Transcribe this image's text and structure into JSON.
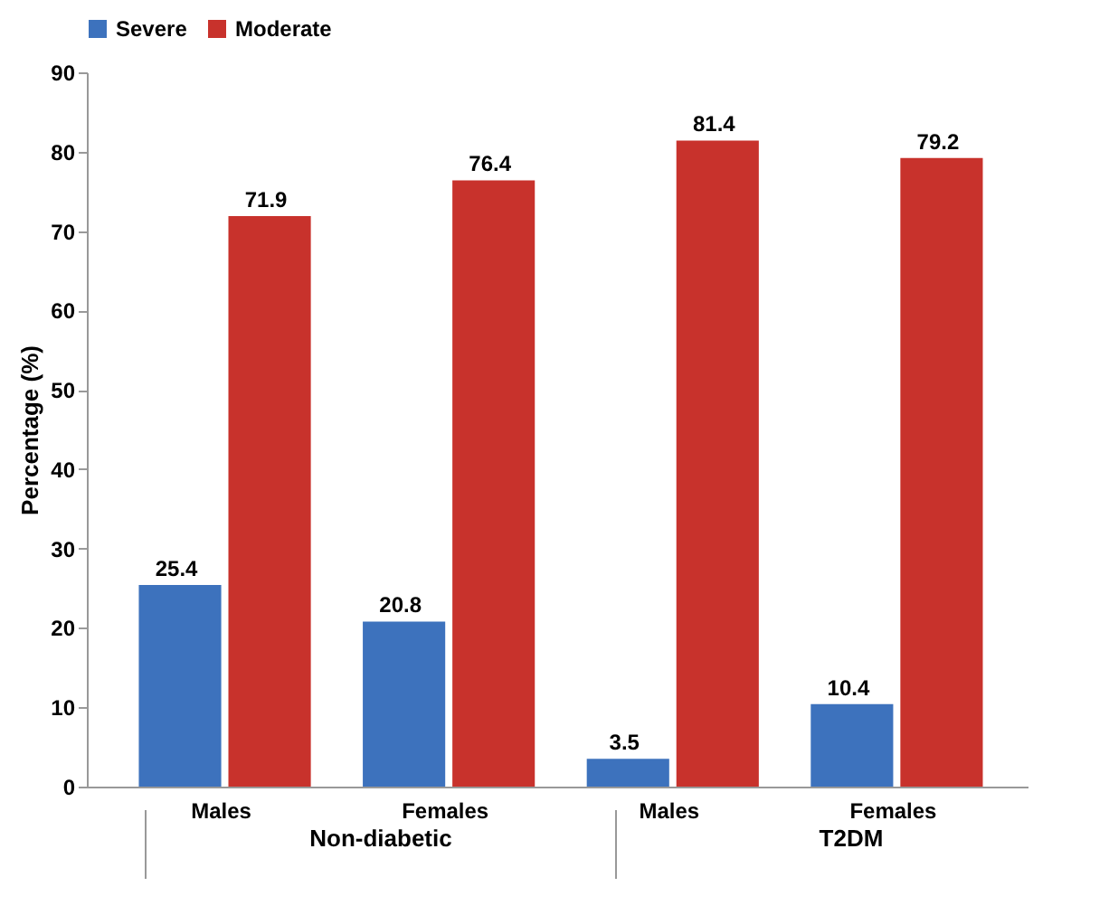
{
  "chart_data": {
    "type": "bar",
    "ylabel": "Percentage (%)",
    "categories": [
      "Males",
      "Females",
      "Males",
      "Females"
    ],
    "series": [
      {
        "name": "Severe",
        "color": "#3d72bd",
        "values": [
          25.4,
          20.8,
          3.5,
          10.4
        ]
      },
      {
        "name": "Moderate",
        "color": "#c8322c",
        "values": [
          71.9,
          76.4,
          81.4,
          79.2
        ]
      }
    ],
    "ylim": [
      0,
      90
    ],
    "yticks": [
      0,
      10,
      20,
      30,
      40,
      50,
      60,
      70,
      80,
      90
    ],
    "data_labels": true,
    "grid": false,
    "legend": "top",
    "annotations": [
      "Non-diabetic",
      "T2DM"
    ]
  }
}
